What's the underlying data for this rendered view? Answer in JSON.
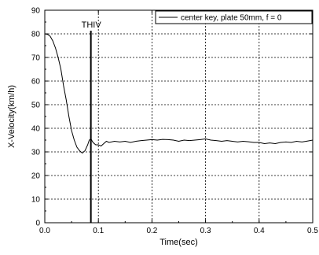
{
  "chart_data": {
    "type": "line",
    "title": "",
    "xlabel": "Time(sec)",
    "ylabel": "X-Velocity(km/h)",
    "xlim": [
      0,
      0.5
    ],
    "ylim": [
      0,
      90
    ],
    "x_ticks": [
      0.0,
      0.1,
      0.2,
      0.3,
      0.4,
      0.5
    ],
    "x_tick_labels": [
      "0.0",
      "0.1",
      "0.2",
      "0.3",
      "0.4",
      "0.5"
    ],
    "y_ticks": [
      0,
      10,
      20,
      30,
      40,
      50,
      60,
      70,
      80,
      90
    ],
    "y_tick_labels": [
      "0",
      "10",
      "20",
      "30",
      "40",
      "50",
      "60",
      "70",
      "80",
      "90"
    ],
    "grid": true,
    "legend_position": "top-right",
    "series": [
      {
        "name": "center key, plate 50mm, f = 0",
        "color": "#000000",
        "x": [
          0.0,
          0.005,
          0.01,
          0.015,
          0.02,
          0.025,
          0.03,
          0.035,
          0.04,
          0.045,
          0.05,
          0.055,
          0.06,
          0.065,
          0.07,
          0.075,
          0.08,
          0.083,
          0.086,
          0.09,
          0.095,
          0.1,
          0.105,
          0.11,
          0.115,
          0.12,
          0.13,
          0.14,
          0.15,
          0.16,
          0.17,
          0.18,
          0.19,
          0.2,
          0.21,
          0.22,
          0.23,
          0.24,
          0.25,
          0.26,
          0.27,
          0.28,
          0.29,
          0.3,
          0.31,
          0.32,
          0.33,
          0.34,
          0.35,
          0.36,
          0.37,
          0.38,
          0.39,
          0.4,
          0.41,
          0.42,
          0.43,
          0.44,
          0.45,
          0.46,
          0.47,
          0.48,
          0.49,
          0.5
        ],
        "y": [
          80,
          79.8,
          79,
          77,
          74,
          70,
          65,
          58,
          52,
          45,
          39,
          35,
          32,
          30.5,
          29.5,
          30.5,
          33,
          35,
          35.5,
          34,
          33,
          33,
          32.5,
          33.5,
          34.5,
          34,
          34.5,
          34.2,
          34.5,
          34,
          34.5,
          34.8,
          35,
          35.2,
          35,
          35.3,
          35.2,
          35,
          34.5,
          35,
          34.8,
          35,
          35.2,
          35.5,
          35,
          34.8,
          34.5,
          34.8,
          34.5,
          34.2,
          34.5,
          34.3,
          34,
          34,
          33.5,
          33.8,
          33.5,
          34,
          34.2,
          34,
          34.5,
          34.2,
          34.6,
          35
        ]
      }
    ],
    "annotations": [
      {
        "label": "THIV",
        "x": 0.086
      }
    ]
  }
}
